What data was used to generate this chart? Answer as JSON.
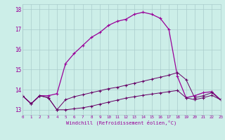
{
  "xlabel": "Windchill (Refroidissement éolien,°C)",
  "bg_color": "#cceee8",
  "grid_color": "#aacccc",
  "line_color": "#990099",
  "line_color2": "#660066",
  "xmin": 0,
  "xmax": 23,
  "ymin": 12.75,
  "ymax": 18.25,
  "yticks": [
    13,
    14,
    15,
    16,
    17,
    18
  ],
  "line1_x": [
    0,
    1,
    2,
    3,
    4,
    5,
    6,
    7,
    8,
    9,
    10,
    11,
    12,
    13,
    14,
    15,
    16,
    17,
    18,
    19,
    20,
    21,
    22,
    23
  ],
  "line1_y": [
    13.7,
    13.3,
    13.7,
    13.7,
    13.8,
    15.3,
    15.8,
    16.2,
    16.6,
    16.85,
    17.2,
    17.4,
    17.5,
    17.75,
    17.85,
    17.75,
    17.55,
    17.0,
    14.65,
    13.6,
    13.7,
    13.85,
    13.9,
    13.5
  ],
  "line2_x": [
    0,
    1,
    2,
    3,
    4,
    5,
    6,
    7,
    8,
    9,
    10,
    11,
    12,
    13,
    14,
    15,
    16,
    17,
    18,
    19,
    20,
    21,
    22,
    23
  ],
  "line2_y": [
    13.7,
    13.3,
    13.7,
    13.6,
    13.0,
    13.5,
    13.65,
    13.75,
    13.85,
    13.95,
    14.05,
    14.12,
    14.22,
    14.32,
    14.42,
    14.52,
    14.62,
    14.72,
    14.85,
    14.5,
    13.6,
    13.7,
    13.85,
    13.5
  ],
  "line3_x": [
    0,
    1,
    2,
    3,
    4,
    5,
    6,
    7,
    8,
    9,
    10,
    11,
    12,
    13,
    14,
    15,
    16,
    17,
    18,
    19,
    20,
    21,
    22,
    23
  ],
  "line3_y": [
    13.7,
    13.3,
    13.7,
    13.6,
    13.0,
    13.0,
    13.05,
    13.1,
    13.18,
    13.28,
    13.38,
    13.48,
    13.58,
    13.65,
    13.72,
    13.78,
    13.84,
    13.9,
    13.96,
    13.6,
    13.5,
    13.6,
    13.72,
    13.5
  ]
}
